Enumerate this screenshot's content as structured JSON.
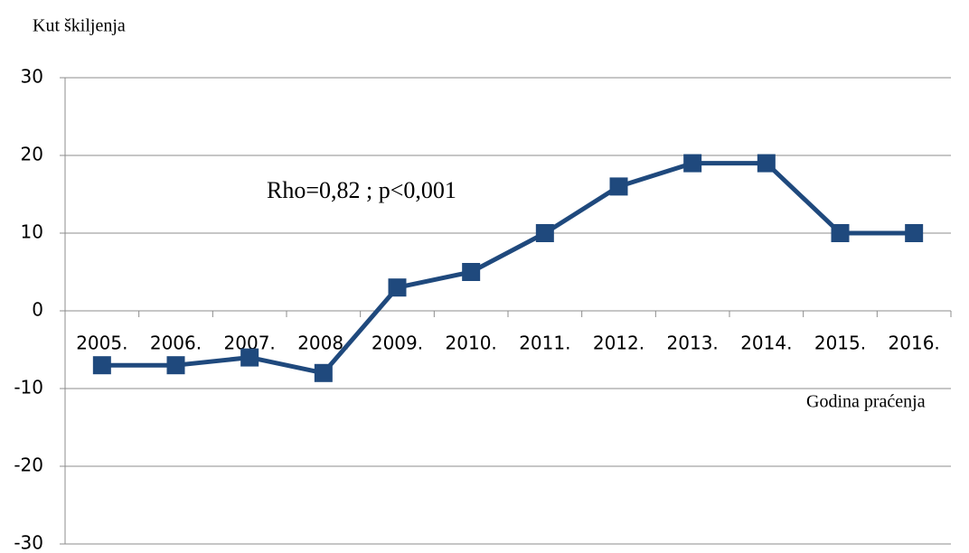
{
  "chart_data": {
    "type": "line",
    "y_axis_label": "Kut škiljenja",
    "x_axis_label": "Godina praćenja",
    "annotation": "Rho=0,82 ; p<0,001",
    "categories": [
      "2005.",
      "2006.",
      "2007.",
      "2008.",
      "2009.",
      "2010.",
      "2011.",
      "2012.",
      "2013.",
      "2014.",
      "2015.",
      "2016."
    ],
    "values": [
      -7,
      -7,
      -6,
      -8,
      3,
      5,
      10,
      16,
      19,
      19,
      10,
      10
    ],
    "color": "#1f497d",
    "ylim": [
      -30,
      30
    ],
    "yticks": [
      -30,
      -20,
      -10,
      0,
      10,
      20,
      30
    ],
    "grid": true
  }
}
